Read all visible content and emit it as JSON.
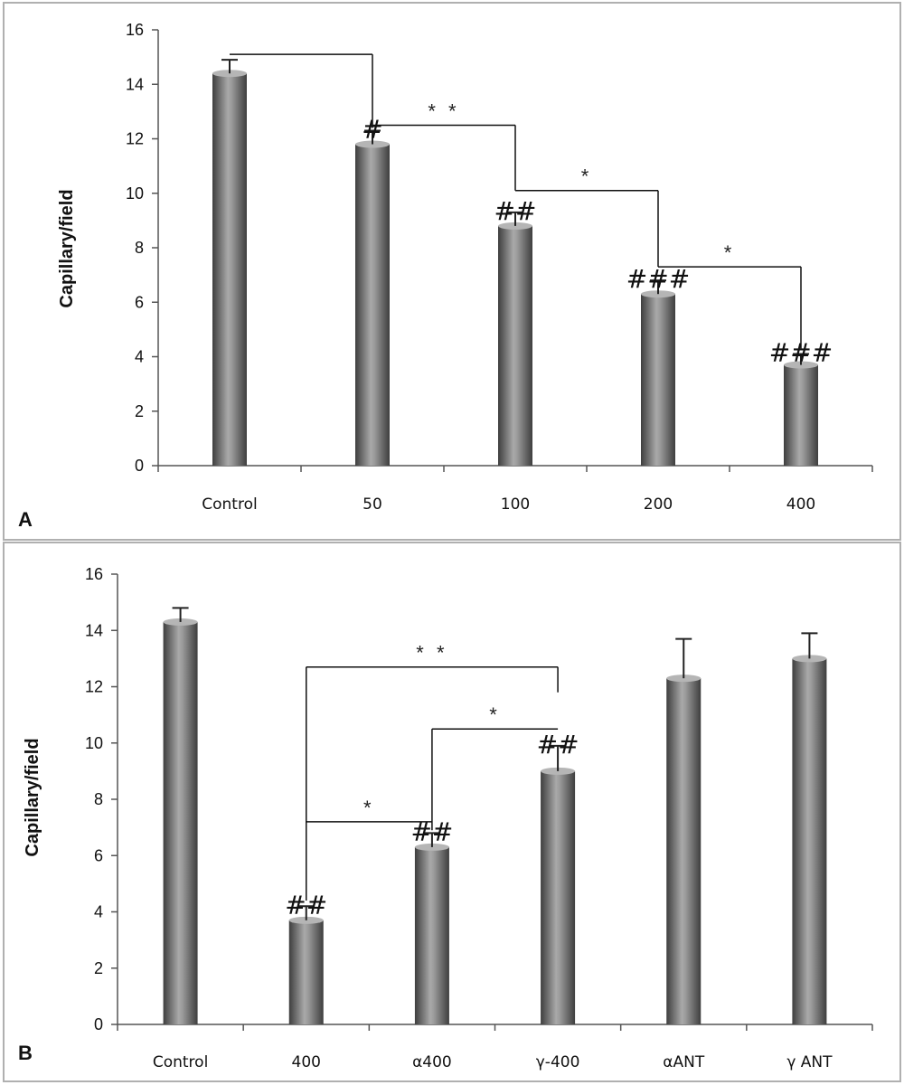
{
  "colors": {
    "bar_light": "#a7a7a7",
    "bar_dark": "#4a4a4a",
    "axis": "#555555",
    "frame": "#b0b0b0"
  },
  "chart_data": [
    {
      "type": "bar",
      "panel_label": "A",
      "ylabel": "Capillary/field",
      "xlabel": "",
      "ylim": [
        0,
        16
      ],
      "yticks": [
        0,
        2,
        4,
        6,
        8,
        10,
        12,
        14,
        16
      ],
      "categories": [
        "Control",
        "50",
        "100",
        "200",
        "400"
      ],
      "values": [
        14.4,
        11.8,
        8.8,
        6.3,
        3.7
      ],
      "errors": [
        0.5,
        0.5,
        0.5,
        0.5,
        0.4
      ],
      "annotations": [
        {
          "category_index": 1,
          "text": "#"
        },
        {
          "category_index": 2,
          "text": "##"
        },
        {
          "category_index": 3,
          "text": "###"
        },
        {
          "category_index": 4,
          "text": "###"
        }
      ],
      "brackets": [
        {
          "from": 0,
          "to": 1,
          "y": 15.1,
          "from_drop": 15.1,
          "to_drop": 12.4,
          "text": ""
        },
        {
          "from": 1,
          "to": 2,
          "y": 12.5,
          "from_drop": 12.5,
          "to_drop": 10.1,
          "text": "* *"
        },
        {
          "from": 2,
          "to": 3,
          "y": 10.1,
          "from_drop": 10.1,
          "to_drop": 7.3,
          "text": "*"
        },
        {
          "from": 3,
          "to": 4,
          "y": 7.3,
          "from_drop": 7.3,
          "to_drop": 4.3,
          "text": "*"
        }
      ]
    },
    {
      "type": "bar",
      "panel_label": "B",
      "ylabel": "Capillary/field",
      "xlabel": "",
      "ylim": [
        0,
        16
      ],
      "yticks": [
        0,
        2,
        4,
        6,
        8,
        10,
        12,
        14,
        16
      ],
      "categories": [
        "Control",
        "400",
        "α400",
        "γ-400",
        "αANT",
        "γ ANT"
      ],
      "values": [
        14.3,
        3.7,
        6.3,
        9.0,
        12.3,
        13.0
      ],
      "errors": [
        0.5,
        0.5,
        0.5,
        0.9,
        1.4,
        0.9
      ],
      "annotations": [
        {
          "category_index": 1,
          "text": "##"
        },
        {
          "category_index": 2,
          "text": "##"
        },
        {
          "category_index": 3,
          "text": "##"
        }
      ],
      "brackets": [
        {
          "from": 1,
          "to": 3,
          "y": 12.7,
          "from_drop": 4.4,
          "to_drop": 11.8,
          "text": "* *"
        },
        {
          "from": 2,
          "to": 3,
          "y": 10.5,
          "from_drop": 6.9,
          "to_drop": 10.5,
          "text": "*"
        },
        {
          "from": 1,
          "to": 2,
          "y": 7.2,
          "from_drop": 7.2,
          "to_drop": 7.2,
          "text": "*"
        }
      ]
    }
  ]
}
